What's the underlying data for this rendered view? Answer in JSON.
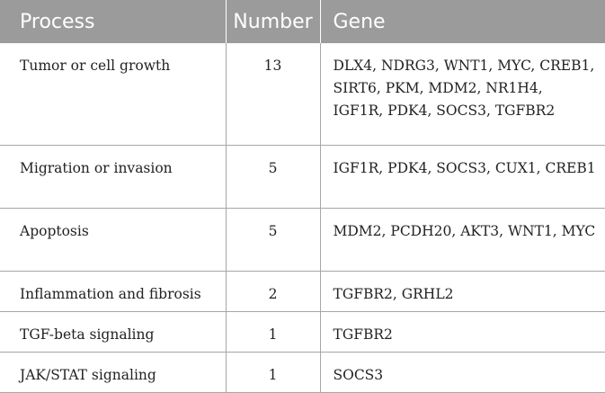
{
  "table": {
    "headers": {
      "process": "Process",
      "number": "Number",
      "gene": "Gene"
    },
    "rows": [
      {
        "process": "Tumor or cell growth",
        "number": "13",
        "gene": "DLX4, NDRG3, WNT1, MYC, CREB1, SIRT6, PKM, MDM2, NR1H4, IGF1R, PDK4, SOCS3, TGFBR2"
      },
      {
        "process": "Migration or invasion",
        "number": "5",
        "gene": "IGF1R, PDK4, SOCS3, CUX1, CREB1"
      },
      {
        "process": "Apoptosis",
        "number": "5",
        "gene": "MDM2, PCDH20, AKT3, WNT1, MYC"
      },
      {
        "process": "Inflammation and fibrosis",
        "number": "2",
        "gene": "TGFBR2, GRHL2"
      },
      {
        "process": "TGF-beta signaling",
        "number": "1",
        "gene": "TGFBR2"
      },
      {
        "process": "JAK/STAT signaling",
        "number": "1",
        "gene": "SOCS3"
      }
    ],
    "colors": {
      "header_bg": "#9b9b9b",
      "header_text": "#ffffff",
      "rule": "#a6a6a6",
      "body_text": "#222222"
    }
  }
}
